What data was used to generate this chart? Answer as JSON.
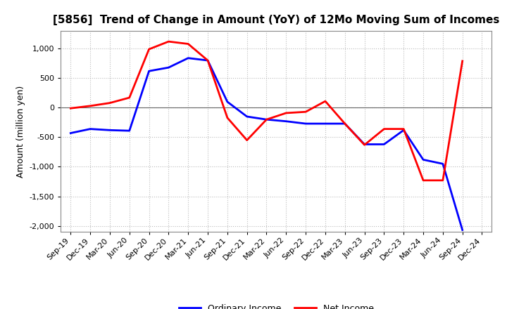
{
  "title": "[5856]  Trend of Change in Amount (YoY) of 12Mo Moving Sum of Incomes",
  "ylabel": "Amount (million yen)",
  "background_color": "#ffffff",
  "grid_color": "#bbbbbb",
  "x_labels": [
    "Sep-19",
    "Dec-19",
    "Mar-20",
    "Jun-20",
    "Sep-20",
    "Dec-20",
    "Mar-21",
    "Jun-21",
    "Sep-21",
    "Dec-21",
    "Mar-22",
    "Jun-22",
    "Sep-22",
    "Dec-22",
    "Mar-23",
    "Jun-23",
    "Sep-23",
    "Dec-23",
    "Mar-24",
    "Jun-24",
    "Sep-24",
    "Dec-24"
  ],
  "ordinary_income": [
    -430,
    -360,
    -380,
    -390,
    620,
    680,
    840,
    800,
    100,
    -150,
    -200,
    -230,
    -270,
    -270,
    -270,
    -620,
    -620,
    -380,
    -880,
    -950,
    -2070,
    null
  ],
  "net_income": [
    -10,
    30,
    80,
    170,
    990,
    1120,
    1080,
    800,
    -170,
    -550,
    -200,
    -90,
    -70,
    110,
    -270,
    -630,
    -360,
    -360,
    -1230,
    -1230,
    790,
    null
  ],
  "ordinary_color": "#0000ff",
  "net_color": "#ff0000",
  "ylim": [
    -2100,
    1300
  ],
  "yticks": [
    -2000,
    -1500,
    -1000,
    -500,
    0,
    500,
    1000
  ],
  "line_width": 2.0,
  "title_fontsize": 11,
  "axis_label_fontsize": 9,
  "tick_fontsize": 8,
  "legend_fontsize": 9
}
